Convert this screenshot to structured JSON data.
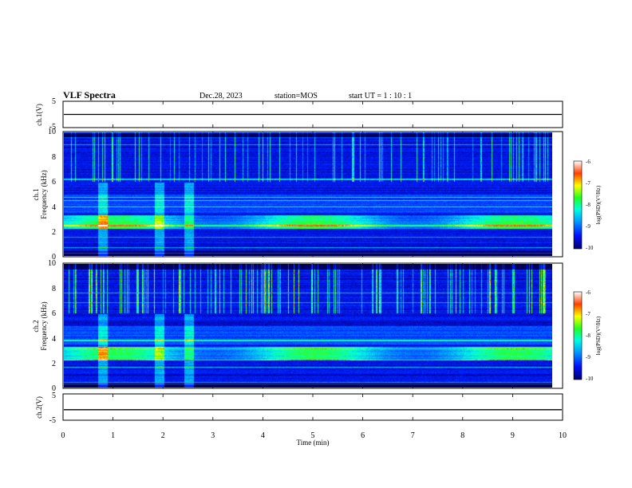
{
  "header": {
    "title": "VLF Spectra",
    "date": "Dec.28, 2023",
    "station": "station=MOS",
    "start_ut": "start  UT =   1 : 10 : 1"
  },
  "chart_data": [
    {
      "panel": "ch1-waveform",
      "type": "line",
      "ylabel": "ch.1(V)",
      "ylim": [
        -5,
        5
      ],
      "yticks": [
        "5",
        "-5"
      ],
      "level": 0
    },
    {
      "panel": "ch1-spectrogram",
      "type": "heatmap",
      "ylabel_line1": "ch.1",
      "ylabel_line2": "Frequency (kHz)",
      "ylim": [
        0,
        10
      ],
      "yticks": [
        "0",
        "2",
        "4",
        "6",
        "8",
        "10"
      ],
      "xlim": [
        0,
        10
      ],
      "colorbar": {
        "label": "log(PSD)(V²/Hz)",
        "range": [
          -10,
          -6
        ],
        "ticks": [
          "-6",
          "-7",
          "-8",
          "-9",
          "-10"
        ]
      },
      "bursts_min": [
        0.8,
        1.95,
        2.55
      ]
    },
    {
      "panel": "ch2-spectrogram",
      "type": "heatmap",
      "ylabel_line1": "ch.2",
      "ylabel_line2": "Frequency (kHz)",
      "ylim": [
        0,
        10
      ],
      "yticks": [
        "0",
        "2",
        "4",
        "6",
        "8",
        "10"
      ],
      "xlim": [
        0,
        10
      ],
      "colorbar": {
        "label": "log(PSD)(V²/Hz)",
        "range": [
          -10,
          -6
        ],
        "ticks": [
          "-6",
          "-7",
          "-8",
          "-9",
          "-10"
        ]
      },
      "bursts_min": [
        0.8,
        1.95,
        2.55
      ]
    },
    {
      "panel": "ch2-waveform",
      "type": "line",
      "ylabel": "ch.2(V)",
      "ylim": [
        -5,
        5
      ],
      "yticks": [
        "5",
        "-5"
      ],
      "level": -1
    },
    {
      "panel": "time-axis",
      "xlabel": "Time (min)",
      "xlim": [
        0,
        10
      ],
      "xticks": [
        "0",
        "1",
        "2",
        "3",
        "4",
        "5",
        "6",
        "7",
        "8",
        "9",
        "10"
      ]
    }
  ]
}
